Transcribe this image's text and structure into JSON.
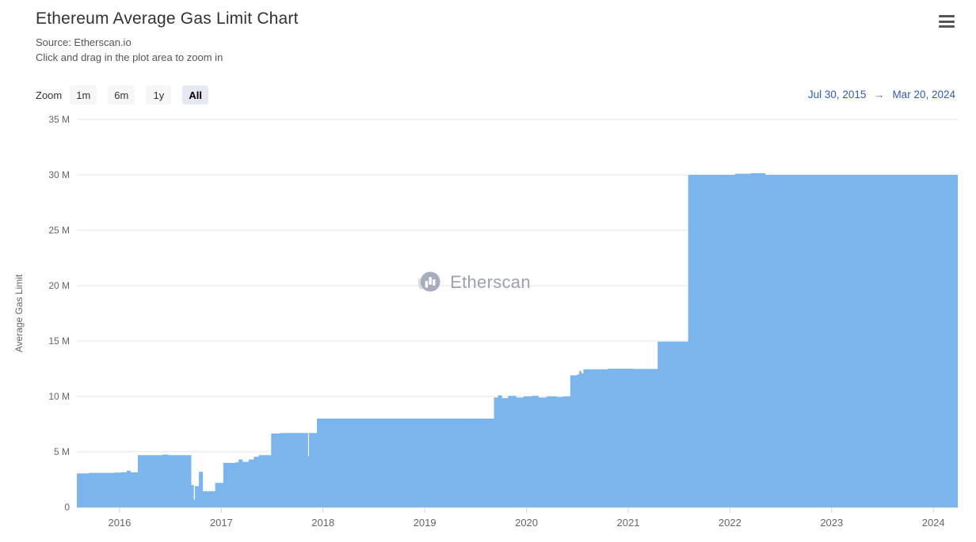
{
  "header": {
    "title": "Ethereum Average Gas Limit Chart",
    "subtitle_source": "Source: Etherscan.io",
    "subtitle_hint": "Click and drag in the plot area to zoom in"
  },
  "range_selector": {
    "zoom_label": "Zoom",
    "buttons": [
      {
        "label": "1m",
        "selected": false
      },
      {
        "label": "6m",
        "selected": false
      },
      {
        "label": "1y",
        "selected": false
      },
      {
        "label": "All",
        "selected": true
      }
    ],
    "range_from": "Jul 30, 2015",
    "range_arrow": "→",
    "range_to": "Mar 20, 2024"
  },
  "watermark": {
    "text": "Etherscan",
    "icon": "etherscan-logo-icon"
  },
  "icons": {
    "menu": "hamburger-icon",
    "range_arrow": "right-arrow-icon"
  },
  "colors": {
    "area": "#7cb5ec",
    "grid": "#e6e6e6",
    "axis_line": "#ccd6eb",
    "axis_label": "#666666",
    "title": "#333333",
    "subtitle": "#555555",
    "range_text": "#335cad",
    "button_bg": "#f7f7f7",
    "button_selected_bg": "#e6e9f4",
    "watermark_text": "#9ba1af",
    "watermark_logo": "#a7adbd"
  },
  "chart_data": {
    "type": "area",
    "title": "Ethereum Average Gas Limit Chart",
    "xlabel": "",
    "ylabel": "Average Gas Limit",
    "grid": true,
    "legend": "none",
    "xlim": [
      2015.58,
      2024.24
    ],
    "ylim": [
      0,
      35000000
    ],
    "x_date_range": [
      "Jul 30, 2015",
      "Mar 20, 2024"
    ],
    "yticks": [
      {
        "v": 0,
        "label": "0"
      },
      {
        "v": 5000000,
        "label": "5 M"
      },
      {
        "v": 10000000,
        "label": "10 M"
      },
      {
        "v": 15000000,
        "label": "15 M"
      },
      {
        "v": 20000000,
        "label": "20 M"
      },
      {
        "v": 25000000,
        "label": "25 M"
      },
      {
        "v": 30000000,
        "label": "30 M"
      },
      {
        "v": 35000000,
        "label": "35 M"
      }
    ],
    "xticks": [
      {
        "v": 2016,
        "label": "2016"
      },
      {
        "v": 2017,
        "label": "2017"
      },
      {
        "v": 2018,
        "label": "2018"
      },
      {
        "v": 2019,
        "label": "2019"
      },
      {
        "v": 2020,
        "label": "2020"
      },
      {
        "v": 2021,
        "label": "2021"
      },
      {
        "v": 2022,
        "label": "2022"
      },
      {
        "v": 2023,
        "label": "2023"
      },
      {
        "v": 2024,
        "label": "2024"
      }
    ],
    "series": [
      {
        "name": "Average Gas Limit",
        "step": "after",
        "points": [
          [
            2015.58,
            3050000
          ],
          [
            2015.7,
            3100000
          ],
          [
            2015.95,
            3130000
          ],
          [
            2016.02,
            3150000
          ],
          [
            2016.07,
            3300000
          ],
          [
            2016.11,
            3150000
          ],
          [
            2016.18,
            4700000
          ],
          [
            2016.42,
            4750000
          ],
          [
            2016.48,
            4700000
          ],
          [
            2016.705,
            2000000
          ],
          [
            2016.73,
            700000
          ],
          [
            2016.74,
            1900000
          ],
          [
            2016.78,
            3200000
          ],
          [
            2016.805,
            3200000
          ],
          [
            2016.82,
            1450000
          ],
          [
            2016.92,
            1450000
          ],
          [
            2016.94,
            2200000
          ],
          [
            2017.02,
            4000000
          ],
          [
            2017.14,
            4050000
          ],
          [
            2017.17,
            4300000
          ],
          [
            2017.21,
            4100000
          ],
          [
            2017.27,
            4300000
          ],
          [
            2017.32,
            4550000
          ],
          [
            2017.37,
            4700000
          ],
          [
            2017.49,
            6650000
          ],
          [
            2017.58,
            6700000
          ],
          [
            2017.853,
            4600000
          ],
          [
            2017.862,
            6700000
          ],
          [
            2017.94,
            8000000
          ],
          [
            2019.68,
            9900000
          ],
          [
            2019.72,
            10100000
          ],
          [
            2019.76,
            9850000
          ],
          [
            2019.82,
            10050000
          ],
          [
            2019.9,
            9900000
          ],
          [
            2019.97,
            10000000
          ],
          [
            2020.05,
            10050000
          ],
          [
            2020.12,
            9900000
          ],
          [
            2020.2,
            10000000
          ],
          [
            2020.3,
            9950000
          ],
          [
            2020.36,
            10000000
          ],
          [
            2020.43,
            11900000
          ],
          [
            2020.5,
            12000000
          ],
          [
            2020.52,
            12300000
          ],
          [
            2020.54,
            12100000
          ],
          [
            2020.56,
            12450000
          ],
          [
            2020.8,
            12500000
          ],
          [
            2021.05,
            12480000
          ],
          [
            2021.29,
            14950000
          ],
          [
            2021.59,
            30000000
          ],
          [
            2022.05,
            30100000
          ],
          [
            2022.2,
            30150000
          ],
          [
            2022.35,
            30000000
          ],
          [
            2024.24,
            30000000
          ]
        ]
      }
    ]
  }
}
